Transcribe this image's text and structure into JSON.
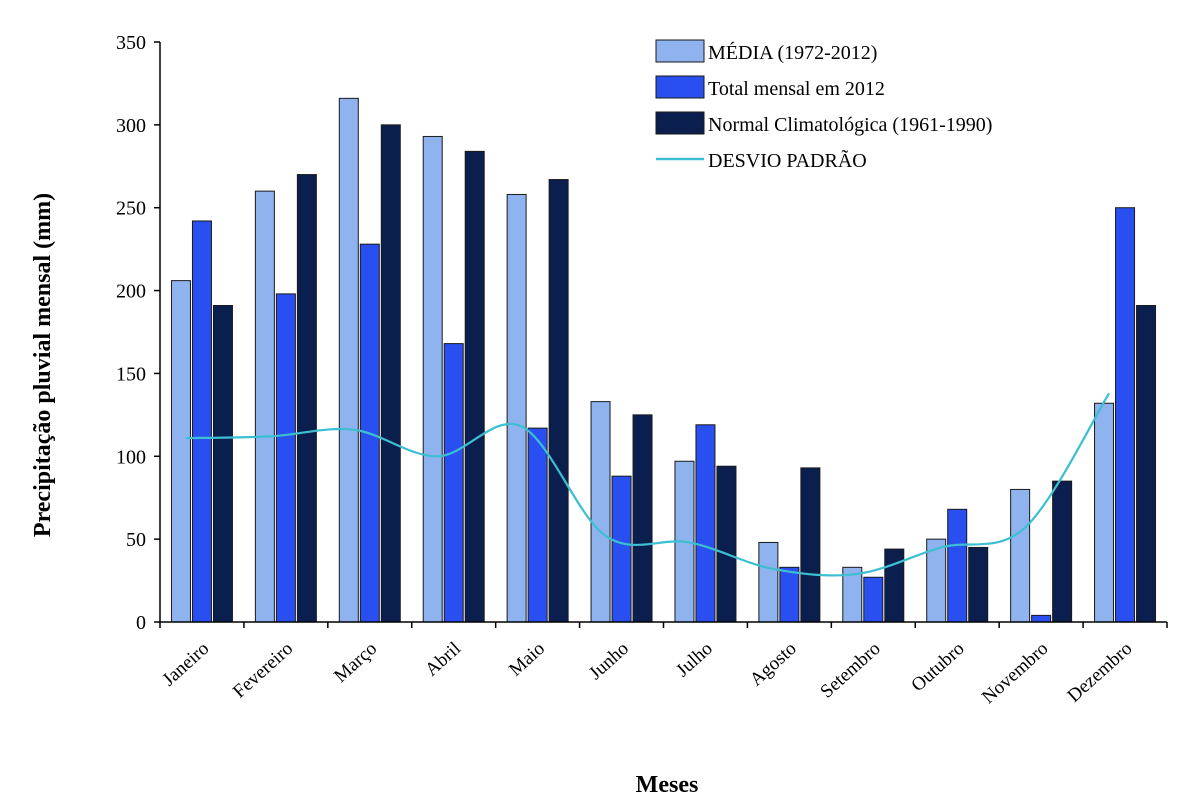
{
  "chart_data": {
    "type": "bar",
    "title": "",
    "xlabel": "Meses",
    "ylabel": "Precipitação pluvial mensal (mm)",
    "ylim": [
      0,
      350
    ],
    "yticks": [
      0,
      50,
      100,
      150,
      200,
      250,
      300,
      350
    ],
    "grid": false,
    "legend_position": "top-right",
    "categories": [
      "Janeiro",
      "Fevereiro",
      "Março",
      "Abril",
      "Maio",
      "Junho",
      "Julho",
      "Agosto",
      "Setembro",
      "Outubro",
      "Novembro",
      "Dezembro"
    ],
    "series": [
      {
        "name": "MÉDIA (1972-2012)",
        "type": "bar",
        "color": "#8fb3ef",
        "values": [
          206,
          260,
          316,
          293,
          258,
          133,
          97,
          48,
          33,
          50,
          80,
          132
        ]
      },
      {
        "name": "Total mensal em 2012",
        "type": "bar",
        "color": "#2a4ff0",
        "values": [
          242,
          198,
          228,
          168,
          117,
          88,
          119,
          33,
          27,
          68,
          4,
          250
        ]
      },
      {
        "name": "Normal Climatológica (1961-1990)",
        "type": "bar",
        "color": "#0b1f4f",
        "values": [
          191,
          270,
          300,
          284,
          267,
          125,
          94,
          93,
          44,
          45,
          85,
          191
        ]
      },
      {
        "name": "DESVIO PADRÃO",
        "type": "line",
        "color": "#3bbfd1",
        "values": [
          111,
          112,
          116,
          100,
          118,
          52,
          48,
          32,
          29,
          45,
          57,
          138
        ]
      }
    ]
  }
}
